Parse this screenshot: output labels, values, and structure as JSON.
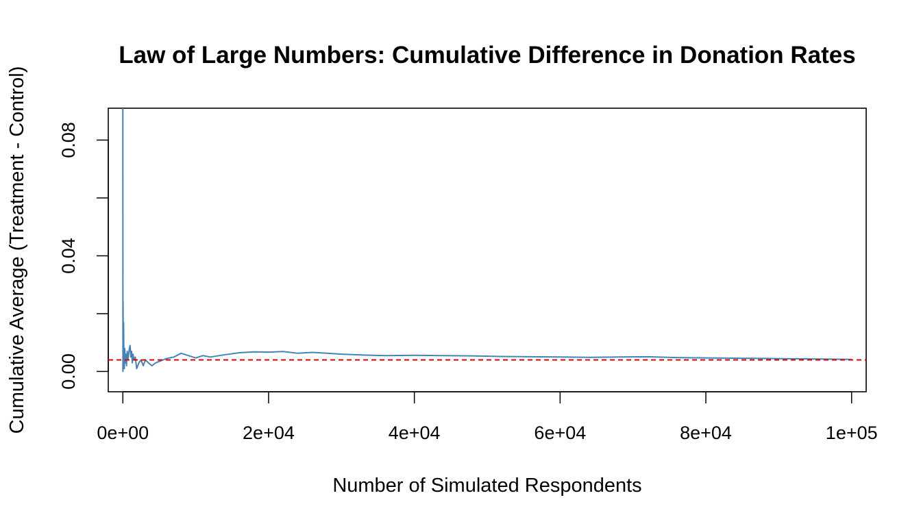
{
  "chart_data": {
    "type": "line",
    "title": "Law of Large Numbers: Cumulative Difference in Donation Rates",
    "xlabel": "Number of Simulated Respondents",
    "ylabel": "Cumulative Average (Treatment - Control)",
    "xlim": [
      -2000,
      102000
    ],
    "ylim": [
      -0.007,
      0.091
    ],
    "x_ticks": [
      0,
      20000,
      40000,
      60000,
      80000,
      100000
    ],
    "x_tick_labels": [
      "0e+00",
      "2e+04",
      "4e+04",
      "6e+04",
      "8e+04",
      "1e+05"
    ],
    "y_ticks": [
      0.0,
      0.02,
      0.04,
      0.06,
      0.08
    ],
    "y_tick_labels": [
      "0.00",
      "",
      "0.04",
      "",
      "0.08"
    ],
    "series": [
      {
        "color": "#4682b4",
        "x": [
          1,
          10,
          30,
          60,
          100,
          150,
          200,
          260,
          330,
          400,
          500,
          600,
          700,
          800,
          900,
          1000,
          1100,
          1200,
          1300,
          1400,
          1500,
          1700,
          1900,
          2200,
          2500,
          2800,
          3100,
          3500,
          4000,
          4500,
          5000,
          5500,
          6000,
          7000,
          8000,
          9000,
          10000,
          11000,
          12000,
          14000,
          16000,
          18000,
          20000,
          22000,
          24000,
          26000,
          28000,
          30000,
          33000,
          36000,
          40000,
          44000,
          48000,
          52000,
          56000,
          60000,
          64000,
          68000,
          72000,
          76000,
          80000,
          84000,
          88000,
          92000,
          96000,
          100000
        ],
        "y": [
          0.091,
          0.0,
          0.024,
          0.006,
          0.017,
          0.003,
          0.001,
          0.008,
          0.003,
          0.006,
          0.002,
          0.007,
          0.004,
          0.006,
          0.008,
          0.009,
          0.005,
          0.007,
          0.003,
          0.006,
          0.004,
          0.005,
          0.001,
          0.003,
          0.004,
          0.002,
          0.004,
          0.003,
          0.002,
          0.003,
          0.0035,
          0.004,
          0.0045,
          0.005,
          0.0063,
          0.0055,
          0.0047,
          0.0055,
          0.005,
          0.0058,
          0.0065,
          0.0068,
          0.0067,
          0.0069,
          0.0063,
          0.0066,
          0.0063,
          0.006,
          0.0057,
          0.0055,
          0.0056,
          0.0055,
          0.0054,
          0.0052,
          0.0051,
          0.005,
          0.0049,
          0.005,
          0.0051,
          0.0048,
          0.0047,
          0.0046,
          0.0045,
          0.0044,
          0.0043,
          0.0042
        ]
      }
    ],
    "reference_line": {
      "y": 0.004,
      "color": "#dd0000",
      "style": "dashed"
    },
    "grid": false,
    "legend": "none"
  }
}
